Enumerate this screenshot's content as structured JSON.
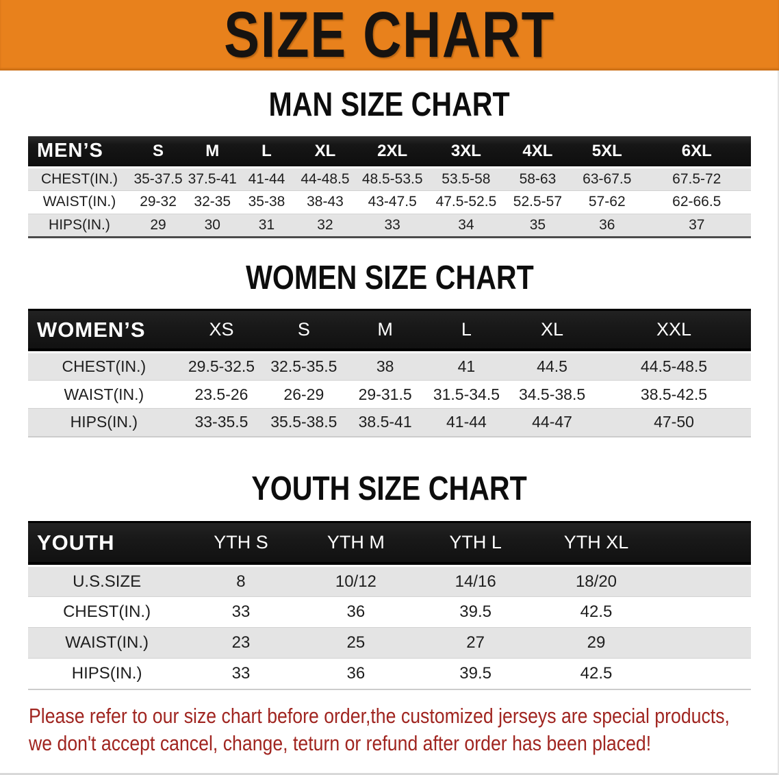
{
  "banner": {
    "title": "SIZE CHART",
    "bg_color": "#e8811c",
    "text_color": "#171310"
  },
  "sections": {
    "men": {
      "heading": "MAN SIZE CHART",
      "table": {
        "corner": "MEN’S",
        "columns": [
          "S",
          "M",
          "L",
          "XL",
          "2XL",
          "3XL",
          "4XL",
          "5XL",
          "6XL"
        ],
        "rows": [
          {
            "label": "CHEST(IN.)",
            "values": [
              "35-37.5",
              "37.5-41",
              "41-44",
              "44-48.5",
              "48.5-53.5",
              "53.5-58",
              "58-63",
              "63-67.5",
              "67.5-72"
            ]
          },
          {
            "label": "WAIST(IN.)",
            "values": [
              "29-32",
              "32-35",
              "35-38",
              "38-43",
              "43-47.5",
              "47.5-52.5",
              "52.5-57",
              "57-62",
              "62-66.5"
            ]
          },
          {
            "label": "HIPS(IN.)",
            "values": [
              "29",
              "30",
              "31",
              "32",
              "33",
              "34",
              "35",
              "36",
              "37"
            ]
          }
        ]
      }
    },
    "women": {
      "heading": "WOMEN SIZE CHART",
      "table": {
        "corner": "WOMEN’S",
        "columns": [
          "XS",
          "S",
          "M",
          "L",
          "XL",
          "XXL"
        ],
        "rows": [
          {
            "label": "CHEST(IN.)",
            "values": [
              "29.5-32.5",
              "32.5-35.5",
              "38",
              "41",
              "44.5",
              "44.5-48.5"
            ]
          },
          {
            "label": "WAIST(IN.)",
            "values": [
              "23.5-26",
              "26-29",
              "29-31.5",
              "31.5-34.5",
              "34.5-38.5",
              "38.5-42.5"
            ]
          },
          {
            "label": "HIPS(IN.)",
            "values": [
              "33-35.5",
              "35.5-38.5",
              "38.5-41",
              "41-44",
              "44-47",
              "47-50"
            ]
          }
        ]
      }
    },
    "youth": {
      "heading": "YOUTH SIZE CHART",
      "table": {
        "corner": "YOUTH",
        "columns": [
          "YTH S",
          "YTH M",
          "YTH L",
          "YTH XL"
        ],
        "rows": [
          {
            "label": "U.S.SIZE",
            "values": [
              "8",
              "10/12",
              "14/16",
              "18/20"
            ]
          },
          {
            "label": "CHEST(IN.)",
            "values": [
              "33",
              "36",
              "39.5",
              "42.5"
            ]
          },
          {
            "label": "WAIST(IN.)",
            "values": [
              "23",
              "25",
              "27",
              "29"
            ]
          },
          {
            "label": "HIPS(IN.)",
            "values": [
              "33",
              "36",
              "39.5",
              "42.5"
            ]
          }
        ]
      }
    }
  },
  "disclaimer": {
    "line1": "Please refer to our size chart before order,the customized jerseys are special products,",
    "line2": "we don't accept cancel, change, teturn or refund after order has been placed!",
    "color": "#a02520"
  }
}
